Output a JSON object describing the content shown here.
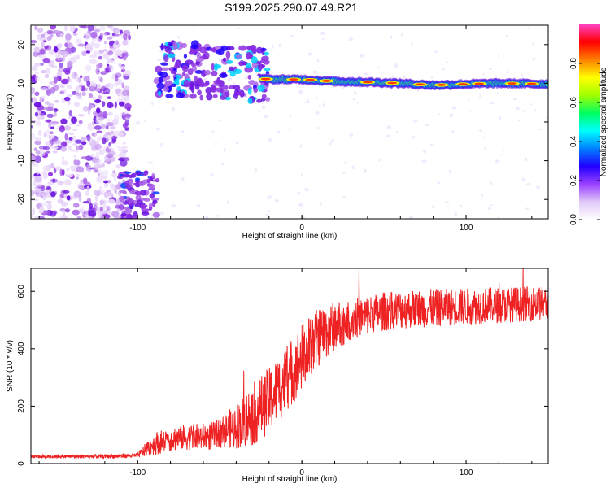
{
  "title": "S199.2025.290.07.49.R21",
  "chart_data": [
    {
      "type": "heatmap",
      "name": "spectrogram",
      "xlabel": "Height of straight line (km)",
      "ylabel": "Frequency (Hz)",
      "xlim": [
        -165,
        150
      ],
      "ylim": [
        -25,
        25
      ],
      "xticks": [
        -100,
        0,
        100
      ],
      "xtick_labels": [
        "-100",
        "0",
        "100"
      ],
      "yticks": [
        -20,
        -10,
        0,
        10,
        20
      ],
      "ytick_labels": [
        "-20",
        "-10",
        "0",
        "10",
        "20"
      ],
      "colorbar": {
        "label": "Normalized spectral amplitude",
        "range": [
          0,
          1
        ],
        "ticks": [
          0.0,
          0.2,
          0.4,
          0.6,
          0.8
        ],
        "tick_labels": [
          "0.0",
          "0.2",
          "0.4",
          "0.6",
          "0.8"
        ],
        "colors": [
          "#ffffff",
          "#d8b8f0",
          "#8a2be2",
          "#0000ff",
          "#00ffff",
          "#00ff00",
          "#ffff00",
          "#ff8000",
          "#ff0000",
          "#ff00ff"
        ]
      },
      "signal_track": {
        "x": [
          -100,
          -80,
          -60,
          -40,
          -20,
          0,
          20,
          40,
          60,
          80,
          100,
          120,
          150
        ],
        "freq": [
          12,
          13,
          12.5,
          12,
          11,
          11,
          10.5,
          10.3,
          10,
          9.5,
          9.8,
          10,
          9.8
        ]
      },
      "low_cluster": {
        "x": [
          -110,
          -88
        ],
        "freq": [
          -25,
          -12
        ]
      }
    },
    {
      "type": "line",
      "name": "snr",
      "xlabel": "Height of straight line (km)",
      "ylabel": "SNR (10 * v/v)",
      "xlim": [
        -165,
        150
      ],
      "ylim": [
        0,
        680
      ],
      "xticks": [
        -100,
        0,
        100
      ],
      "xtick_labels": [
        "-100",
        "0",
        "100"
      ],
      "yticks": [
        0,
        200,
        400,
        600
      ],
      "ytick_labels": [
        "0",
        "200",
        "400",
        "600"
      ],
      "color": "#ee2222",
      "trend": {
        "x": [
          -165,
          -120,
          -100,
          -90,
          -75,
          -55,
          -40,
          -30,
          -20,
          -10,
          0,
          10,
          20,
          35,
          50,
          70,
          90,
          110,
          130,
          150
        ],
        "y": [
          25,
          25,
          28,
          70,
          90,
          95,
          130,
          170,
          220,
          290,
          370,
          440,
          480,
          510,
          530,
          540,
          545,
          550,
          555,
          560
        ]
      },
      "noise_amplitude": {
        "x": [
          -165,
          -100,
          -90,
          -50,
          -30,
          0,
          30,
          150
        ],
        "y": [
          6,
          8,
          40,
          50,
          110,
          120,
          70,
          60
        ]
      }
    }
  ]
}
